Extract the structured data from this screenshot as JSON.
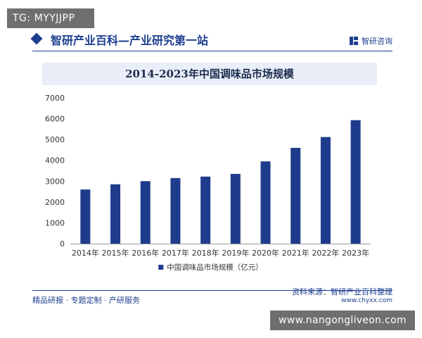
{
  "overlay": {
    "tg_tag": "TG: MYYJJPP",
    "site_watermark": "www.nangongliveon.com"
  },
  "header": {
    "title": "智研产业百科—产业研究第一站",
    "brand": "智研咨询"
  },
  "footer": {
    "left": "精品研报 · 专题定制 · 产研服务",
    "source": "资料来源：智研产业百科整理",
    "url": "www.chyxx.com"
  },
  "colors": {
    "bar": "#1f3c8c",
    "accent": "#1d3f8f"
  },
  "chart_data": {
    "type": "bar",
    "title": "2014-2023年中国调味品市场规模",
    "categories": [
      "2014年",
      "2015年",
      "2016年",
      "2017年",
      "2018年",
      "2019年",
      "2020年",
      "2021年",
      "2022年",
      "2023年"
    ],
    "series": [
      {
        "name": "中国调味品市场规模（亿元）",
        "values": [
          2600,
          2850,
          3000,
          3150,
          3220,
          3350,
          3950,
          4600,
          5120,
          5930
        ]
      }
    ],
    "y_ticks": [
      "0",
      "1000",
      "2000",
      "3000",
      "4000",
      "5000",
      "6000",
      "7000"
    ],
    "ylim": [
      0,
      7000
    ],
    "grid": false,
    "legend_position": "bottom-center"
  }
}
